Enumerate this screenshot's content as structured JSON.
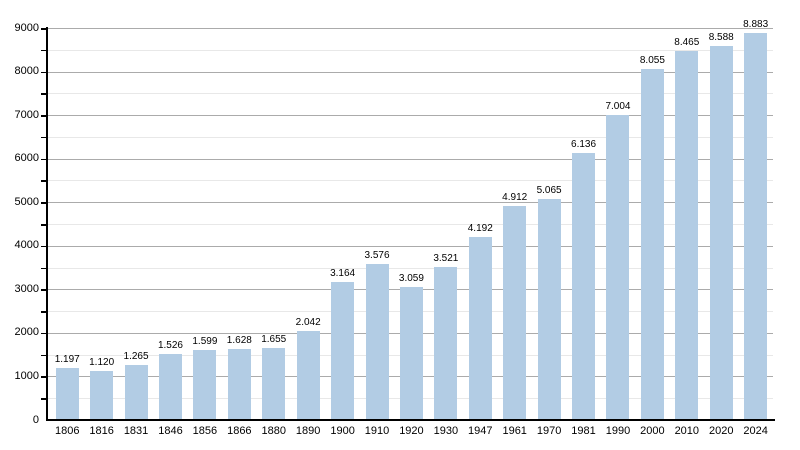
{
  "chart_data": {
    "type": "bar",
    "title": "",
    "xlabel": "",
    "ylabel": "",
    "categories": [
      "1806",
      "1816",
      "1831",
      "1846",
      "1856",
      "1866",
      "1880",
      "1890",
      "1900",
      "1910",
      "1920",
      "1930",
      "1947",
      "1961",
      "1970",
      "1981",
      "1990",
      "2000",
      "2010",
      "2020",
      "2024"
    ],
    "values": [
      1197,
      1120,
      1265,
      1526,
      1599,
      1628,
      1655,
      2042,
      3164,
      3576,
      3059,
      3521,
      4192,
      4912,
      5065,
      6136,
      7004,
      8055,
      8465,
      8588,
      8883
    ],
    "value_labels": [
      "1.197",
      "1.120",
      "1.265",
      "1.526",
      "1.599",
      "1.628",
      "1.655",
      "2.042",
      "3.164",
      "3.576",
      "3.059",
      "3.521",
      "4.192",
      "4.912",
      "5.065",
      "6.136",
      "7.004",
      "8.055",
      "8.465",
      "8.588",
      "8.883"
    ],
    "ylim": [
      0,
      9000
    ],
    "y_major_tick_step": 1000,
    "y_minor_tick_step": 500,
    "y_tick_labels": [
      "0",
      "1000",
      "2000",
      "3000",
      "4000",
      "5000",
      "6000",
      "7000",
      "8000",
      "9000"
    ],
    "grid": "horizontal",
    "legend_position": "none",
    "colors": {
      "bar_fill": "#b2cce4",
      "major_gridline": "#ababab",
      "minor_gridline": "#e8e8e8",
      "axis": "#000000",
      "text": "#000000",
      "background": "#ffffff"
    }
  }
}
